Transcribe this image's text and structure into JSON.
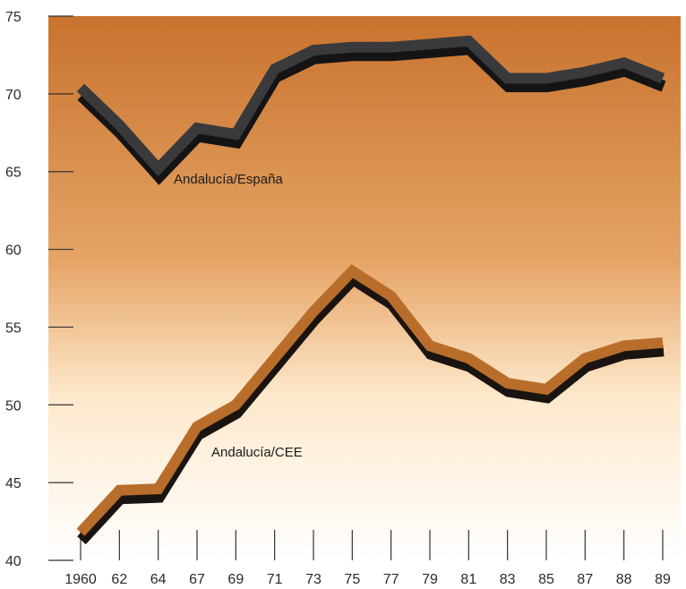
{
  "chart_data": {
    "type": "line",
    "categories": [
      "1960",
      "62",
      "64",
      "67",
      "69",
      "71",
      "73",
      "75",
      "77",
      "79",
      "81",
      "83",
      "85",
      "87",
      "88",
      "89"
    ],
    "series": [
      {
        "name": "Andalucía/España",
        "values": [
          70.4,
          68.0,
          65.2,
          67.8,
          67.4,
          71.6,
          72.8,
          73.0,
          73.0,
          73.2,
          73.4,
          71.0,
          71.0,
          71.4,
          72.0,
          71.0
        ],
        "color": "#3a3a3c",
        "shadow": "#141414"
      },
      {
        "name": "Andalucía/CEE",
        "values": [
          41.8,
          44.5,
          44.6,
          48.6,
          50.0,
          53.0,
          56.0,
          58.6,
          57.0,
          53.8,
          53.0,
          51.4,
          51.0,
          53.0,
          53.8,
          54.0
        ],
        "color": "#b86e2a",
        "shadow": "#1a1410"
      }
    ],
    "ylim": [
      40,
      75
    ],
    "yticks": [
      40,
      45,
      50,
      55,
      60,
      65,
      70,
      75
    ],
    "grid": false,
    "legend": "inline labels",
    "background_gradient": [
      "#c8732e",
      "#e6a466",
      "#fde9cc",
      "#ffffff"
    ]
  }
}
